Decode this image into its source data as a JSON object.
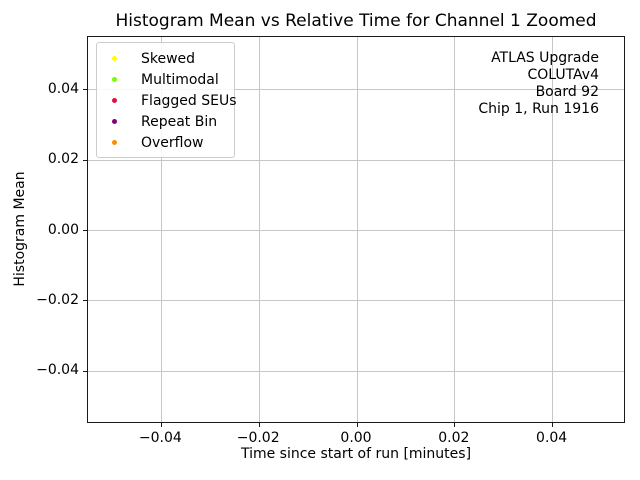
{
  "chart_data": {
    "type": "scatter",
    "title": "Histogram Mean vs Relative Time for Channel 1 Zoomed",
    "xlabel": "Time since start of run [minutes]",
    "ylabel": "Histogram Mean",
    "xlim": [
      -0.055,
      0.055
    ],
    "ylim": [
      -0.055,
      0.055
    ],
    "x_ticks": [
      -0.04,
      -0.02,
      0.0,
      0.02,
      0.04
    ],
    "x_tick_labels": [
      "−0.04",
      "−0.02",
      "0.00",
      "0.02",
      "0.04"
    ],
    "y_ticks": [
      0.04,
      0.02,
      0.0,
      -0.02,
      -0.04
    ],
    "y_tick_labels": [
      "0.04",
      "0.02",
      "0.00",
      "−0.02",
      "−0.04"
    ],
    "grid": true,
    "grid_color": "#c6c6c6",
    "legend_position": "upper left",
    "series": [
      {
        "name": "Skewed",
        "color": "#ffff00",
        "points": []
      },
      {
        "name": "Multimodal",
        "color": "#7cfc00",
        "points": []
      },
      {
        "name": "Flagged SEUs",
        "color": "#dc143c",
        "points": []
      },
      {
        "name": "Repeat Bin",
        "color": "#800080",
        "points": []
      },
      {
        "name": "Overflow",
        "color": "#ff8c00",
        "points": []
      }
    ],
    "annotation": {
      "lines": [
        "ATLAS Upgrade",
        "COLUTAv4",
        "Board 92",
        "Chip 1, Run 1916"
      ],
      "position": "upper right",
      "align": "right"
    }
  }
}
